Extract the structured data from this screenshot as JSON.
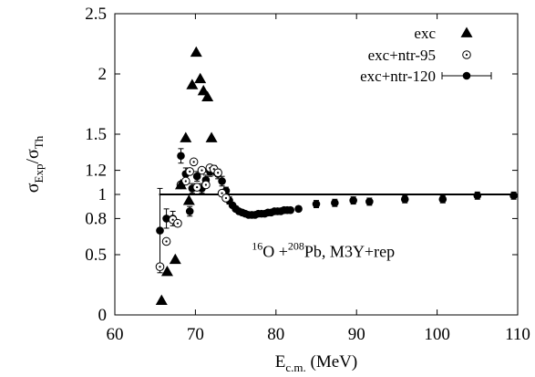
{
  "chart_data": {
    "type": "scatter",
    "xlabel": {
      "main": "E",
      "sub": "c.m.",
      "unit": "(MeV)"
    },
    "ylabel": {
      "num": "σ",
      "num_sub": "Exp",
      "slash": "/",
      "den": "σ",
      "den_sub": "Th"
    },
    "xlim": [
      60,
      110
    ],
    "ylim": [
      0,
      2.5
    ],
    "xticks": [
      60,
      70,
      80,
      90,
      100,
      110
    ],
    "yticks": [
      0,
      0.5,
      0.8,
      1,
      1.2,
      1.5,
      2,
      2.5
    ],
    "ytick_labels": [
      "0",
      "0.5",
      "0.8",
      "1",
      "1.2",
      "1.5",
      "2",
      "2.5"
    ],
    "grid": false,
    "legend_position": "top-right",
    "reference_line": {
      "y": 1.0,
      "x_range": [
        65.5,
        110
      ]
    },
    "annotation": {
      "parts": [
        {
          "text": "16",
          "sup": true
        },
        {
          "text": "O +",
          "sup": false
        },
        {
          "text": "208",
          "sup": true
        },
        {
          "text": "Pb, M3Y+rep",
          "sup": false
        }
      ],
      "x": 77,
      "y": 0.48
    },
    "series": [
      {
        "name": "exc",
        "marker": "filled-triangle",
        "points": [
          [
            65.8,
            0.12
          ],
          [
            66.5,
            0.36
          ],
          [
            67.5,
            0.46
          ],
          [
            68.2,
            1.08
          ],
          [
            68.8,
            1.47
          ],
          [
            69.2,
            0.95
          ],
          [
            69.6,
            1.91
          ],
          [
            70.1,
            2.18
          ],
          [
            70.6,
            1.96
          ],
          [
            71.0,
            1.86
          ],
          [
            71.5,
            1.81
          ],
          [
            72.0,
            1.47
          ]
        ]
      },
      {
        "name": "exc+ntr-95",
        "marker": "open-circle-dot",
        "points": [
          [
            65.6,
            0.4
          ],
          [
            66.4,
            0.61
          ],
          [
            67.2,
            0.79
          ],
          [
            67.8,
            0.76
          ],
          [
            68.2,
            1.08
          ],
          [
            68.8,
            1.11
          ],
          [
            69.3,
            1.19
          ],
          [
            69.8,
            1.27
          ],
          [
            70.2,
            1.06
          ],
          [
            70.8,
            1.2
          ],
          [
            71.3,
            1.08
          ],
          [
            71.8,
            1.22
          ],
          [
            72.3,
            1.21
          ],
          [
            72.8,
            1.18
          ],
          [
            73.3,
            1.01
          ],
          [
            73.8,
            0.97
          ]
        ]
      },
      {
        "name": "exc+ntr-120",
        "marker": "filled-circle-errorbar",
        "points": [
          [
            65.6,
            0.7,
            0.35
          ],
          [
            66.4,
            0.8,
            0.08
          ],
          [
            67.2,
            0.8,
            0.06
          ],
          [
            68.2,
            1.32,
            0.06
          ],
          [
            68.8,
            1.17,
            0.05
          ],
          [
            69.3,
            0.86,
            0.04
          ],
          [
            69.6,
            1.05,
            0.04
          ],
          [
            70.2,
            1.15,
            0.04
          ],
          [
            70.8,
            1.05,
            0.04
          ],
          [
            71.3,
            1.12,
            0.04
          ],
          [
            71.8,
            1.19,
            0.04
          ],
          [
            72.3,
            1.2,
            0.04
          ],
          [
            72.8,
            1.17,
            0.04
          ],
          [
            73.3,
            1.11,
            0.04
          ],
          [
            73.8,
            1.03,
            0.03
          ],
          [
            74.2,
            0.95,
            0.03
          ],
          [
            74.6,
            0.91,
            0.02
          ],
          [
            75.0,
            0.88,
            0.02
          ],
          [
            75.4,
            0.86,
            0.02
          ],
          [
            75.8,
            0.85,
            0.02
          ],
          [
            76.2,
            0.84,
            0.02
          ],
          [
            76.6,
            0.83,
            0.02
          ],
          [
            77.0,
            0.83,
            0.02
          ],
          [
            77.4,
            0.83,
            0.02
          ],
          [
            77.8,
            0.84,
            0.02
          ],
          [
            78.2,
            0.84,
            0.02
          ],
          [
            78.6,
            0.84,
            0.02
          ],
          [
            79.0,
            0.85,
            0.02
          ],
          [
            79.4,
            0.85,
            0.02
          ],
          [
            79.8,
            0.86,
            0.02
          ],
          [
            80.2,
            0.86,
            0.02
          ],
          [
            80.6,
            0.86,
            0.02
          ],
          [
            81.0,
            0.87,
            0.02
          ],
          [
            81.4,
            0.87,
            0.02
          ],
          [
            81.8,
            0.87,
            0.02
          ],
          [
            82.8,
            0.88,
            0.02
          ],
          [
            85.0,
            0.92,
            0.03
          ],
          [
            87.3,
            0.93,
            0.03
          ],
          [
            89.6,
            0.95,
            0.03
          ],
          [
            91.6,
            0.94,
            0.03
          ],
          [
            96.0,
            0.96,
            0.03
          ],
          [
            100.7,
            0.96,
            0.03
          ],
          [
            105.0,
            0.99,
            0.03
          ],
          [
            109.5,
            0.99,
            0.03
          ]
        ]
      }
    ]
  }
}
